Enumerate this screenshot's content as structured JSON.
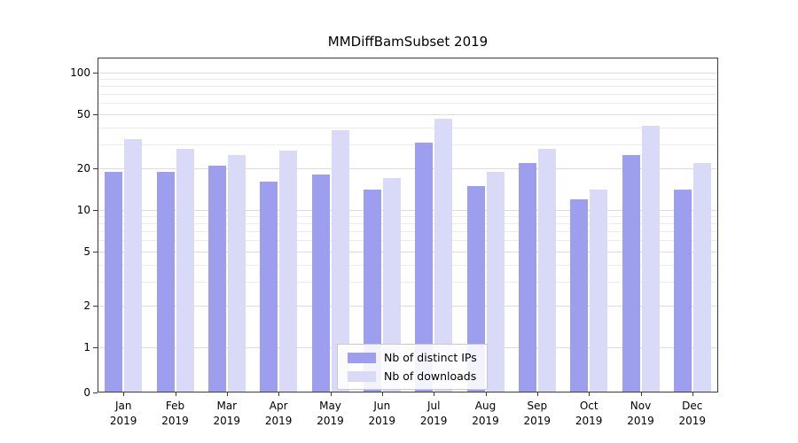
{
  "chart_data": {
    "type": "bar",
    "title": "MMDiffBamSubset 2019",
    "categories": [
      "Jan",
      "Feb",
      "Mar",
      "Apr",
      "May",
      "Jun",
      "Jul",
      "Aug",
      "Sep",
      "Oct",
      "Nov",
      "Dec"
    ],
    "year": "2019",
    "series": [
      {
        "name": "Nb of distinct IPs",
        "color": "#9e9eee",
        "values": [
          19,
          19,
          21,
          16,
          18,
          14,
          31,
          15,
          22,
          12,
          25,
          14
        ]
      },
      {
        "name": "Nb of downloads",
        "color": "#d9d9f8",
        "values": [
          33,
          28,
          25,
          27,
          38,
          17,
          46,
          19,
          28,
          14,
          41,
          22
        ]
      }
    ],
    "yscale": "symlog",
    "ylim": [
      0,
      120
    ],
    "ytick_labels": [
      0,
      1,
      2,
      5,
      10,
      20,
      50,
      100
    ],
    "minor_gridlines": [
      1,
      2,
      3,
      4,
      5,
      6,
      7,
      8,
      9,
      10,
      20,
      30,
      40,
      50,
      60,
      70,
      80,
      90,
      100
    ],
    "grid": true,
    "legend_position": "lower center",
    "xlabel": "",
    "ylabel": ""
  }
}
